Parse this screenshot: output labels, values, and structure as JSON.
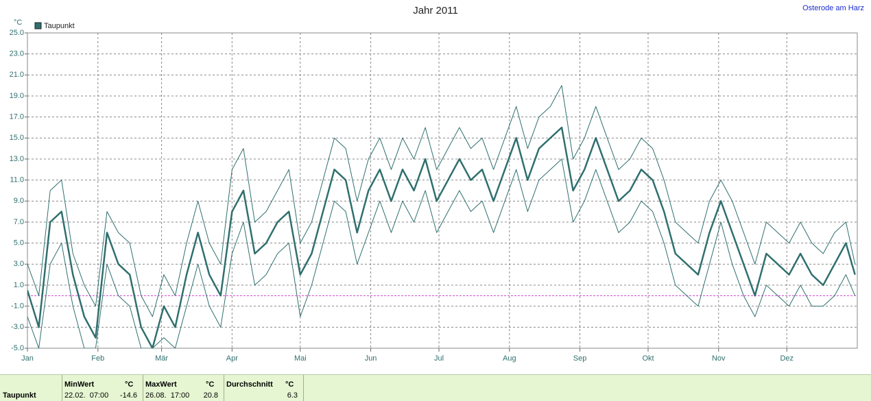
{
  "chart_data": {
    "type": "line",
    "title": "Jahr 2011",
    "location": "Osterode am Harz",
    "y_unit": "°C",
    "x": [
      0,
      5,
      10,
      15,
      20,
      25,
      30,
      35,
      40,
      45,
      50,
      55,
      60,
      65,
      70,
      75,
      80,
      85,
      90,
      95,
      100,
      105,
      110,
      115,
      120,
      125,
      130,
      135,
      140,
      145,
      150,
      155,
      160,
      165,
      170,
      175,
      180,
      185,
      190,
      195,
      200,
      205,
      210,
      215,
      220,
      225,
      230,
      235,
      240,
      245,
      250,
      255,
      260,
      265,
      270,
      275,
      280,
      285,
      290,
      295,
      300,
      305,
      310,
      315,
      320,
      325,
      330,
      335,
      340,
      345,
      350,
      355,
      360,
      364
    ],
    "xlim": [
      0,
      365
    ],
    "xticks": [
      {
        "value": 0,
        "label": "Jan"
      },
      {
        "value": 31,
        "label": "Feb"
      },
      {
        "value": 59,
        "label": "Mär"
      },
      {
        "value": 90,
        "label": "Apr"
      },
      {
        "value": 120,
        "label": "Mai"
      },
      {
        "value": 151,
        "label": "Jun"
      },
      {
        "value": 181,
        "label": "Jul"
      },
      {
        "value": 212,
        "label": "Aug"
      },
      {
        "value": 243,
        "label": "Sep"
      },
      {
        "value": 273,
        "label": "Okt"
      },
      {
        "value": 304,
        "label": "Nov"
      },
      {
        "value": 334,
        "label": "Dez"
      }
    ],
    "ylim": [
      -5,
      25
    ],
    "yticks": [
      {
        "value": -5,
        "label": "-5.0"
      },
      {
        "value": -3,
        "label": "-3.0"
      },
      {
        "value": -1,
        "label": "-1.0"
      },
      {
        "value": 1,
        "label": "1.0"
      },
      {
        "value": 3,
        "label": "3.0"
      },
      {
        "value": 5,
        "label": "5.0"
      },
      {
        "value": 7,
        "label": "7.0"
      },
      {
        "value": 9,
        "label": "9.0"
      },
      {
        "value": 11,
        "label": "11.0"
      },
      {
        "value": 13,
        "label": "13.0"
      },
      {
        "value": 15,
        "label": "15.0"
      },
      {
        "value": 17,
        "label": "17.0"
      },
      {
        "value": 19,
        "label": "19.0"
      },
      {
        "value": 21,
        "label": "21.0"
      },
      {
        "value": 23,
        "label": "23.0"
      },
      {
        "value": 25,
        "label": "25.0"
      }
    ],
    "grid": true,
    "zero_line_color": "#d040d0",
    "legend": "top-left",
    "series": [
      {
        "name": "Taupunkt",
        "color": "#2f6f6e",
        "values": [
          0.5,
          -3,
          7,
          8,
          2,
          -2,
          -4,
          6,
          3,
          2,
          -3,
          -5,
          -1,
          -3,
          2,
          6,
          2,
          0,
          8,
          10,
          4,
          5,
          7,
          8,
          2,
          4,
          8,
          12,
          11,
          6,
          10,
          12,
          9,
          12,
          10,
          13,
          9,
          11,
          13,
          11,
          12,
          9,
          12,
          15,
          11,
          14,
          15,
          16,
          10,
          12,
          15,
          12,
          9,
          10,
          12,
          11,
          8,
          4,
          3,
          2,
          6,
          9,
          6,
          3,
          0,
          4,
          3,
          2,
          4,
          2,
          1,
          3,
          5,
          2
        ]
      },
      {
        "color": "#2f6f6e",
        "values": [
          -2,
          -5,
          3,
          5,
          -1,
          -5,
          -5,
          3,
          0,
          -1,
          -5,
          -5,
          -4,
          -5,
          -1,
          3,
          -1,
          -3,
          4,
          7,
          1,
          2,
          4,
          5,
          -2,
          1,
          5,
          9,
          8,
          3,
          6,
          9,
          6,
          9,
          7,
          10,
          6,
          8,
          10,
          8,
          9,
          6,
          9,
          12,
          8,
          11,
          12,
          13,
          7,
          9,
          12,
          9,
          6,
          7,
          9,
          8,
          5,
          1,
          0,
          -1,
          3,
          7,
          3,
          0,
          -2,
          1,
          0,
          -1,
          1,
          -1,
          -1,
          0,
          2,
          0
        ]
      },
      {
        "color": "#2f6f6e",
        "values": [
          3,
          0,
          10,
          11,
          4,
          1,
          -1,
          8,
          6,
          5,
          0,
          -2,
          2,
          0,
          5,
          9,
          5,
          3,
          12,
          14,
          7,
          8,
          10,
          12,
          5,
          7,
          11,
          15,
          14,
          9,
          13,
          15,
          12,
          15,
          13,
          16,
          12,
          14,
          16,
          14,
          15,
          12,
          15,
          18,
          14,
          17,
          18,
          20,
          13,
          15,
          18,
          15,
          12,
          13,
          15,
          14,
          11,
          7,
          6,
          5,
          9,
          11,
          9,
          6,
          3,
          7,
          6,
          5,
          7,
          5,
          4,
          6,
          7,
          3
        ]
      }
    ]
  },
  "summary": {
    "columns": [
      {
        "header": "MinWert",
        "unit": "°C",
        "time": "22.02.  07:00",
        "value": -14.6
      },
      {
        "header": "MaxWert",
        "unit": "°C",
        "time": "26.08.  17:00",
        "value": 20.8
      },
      {
        "header": "Durchschnitt",
        "unit": "°C",
        "value": 6.3
      }
    ]
  }
}
